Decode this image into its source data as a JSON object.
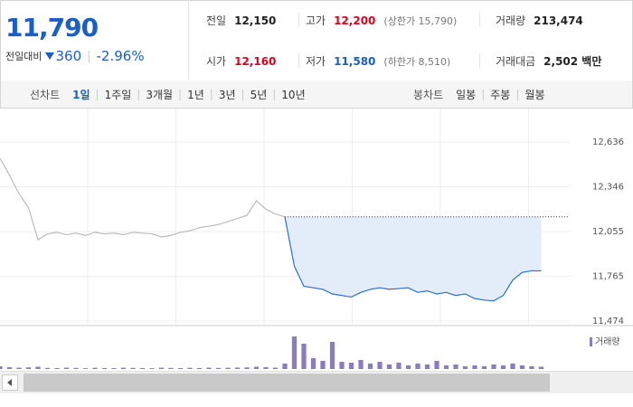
{
  "header": {
    "price": "11,790",
    "change_label": "전일대비",
    "change": "360",
    "change_rate": "-2.96%"
  },
  "stats": [
    {
      "label": "전일",
      "value": "12,150",
      "color": "#222"
    },
    {
      "label": "고가",
      "value": "12,200",
      "note": "(상한가 15,790)",
      "color": "#e0001b"
    },
    {
      "label": "거래량",
      "value": "213,474",
      "color": "#222"
    },
    {
      "label": "시가",
      "value": "12,160",
      "color": "#e0001b"
    },
    {
      "label": "저가",
      "value": "11,580",
      "note": "(하한가 8,510)",
      "color": "#1a5fc7"
    },
    {
      "label": "거래대금",
      "value": "2,502 백만",
      "color": "#222"
    }
  ],
  "tabs": {
    "line_label": "선차트",
    "line": [
      "1일",
      "1주일",
      "3개월",
      "1년",
      "3년",
      "5년",
      "10년"
    ],
    "candle_label": "봉차트",
    "candle": [
      "일봉",
      "주봉",
      "월봉"
    ]
  },
  "chart_data": {
    "type": "line",
    "xlim": [
      0,
      60
    ],
    "ylim": [
      11474,
      12636
    ],
    "yticks": [
      {
        "value": 12636,
        "label": "12,636"
      },
      {
        "value": 12346,
        "label": "12,346"
      },
      {
        "value": 12055,
        "label": "12,055"
      },
      {
        "value": 11765,
        "label": "11,765"
      },
      {
        "value": 11474,
        "label": "11,474"
      }
    ],
    "baseline": 12150,
    "series": [
      {
        "color": "#bbbbbb",
        "values": [
          12530,
          12420,
          12300,
          12210,
          12002,
          12040,
          12050,
          12035,
          12045,
          12030,
          12050,
          12040,
          12045,
          12035,
          12050,
          12045,
          12040,
          12020,
          12030,
          12050,
          12060,
          12080,
          12090,
          12100,
          12120,
          12140,
          12160,
          12255,
          12200,
          12170,
          12150,
          null,
          null,
          null,
          null,
          null,
          null,
          null,
          null,
          null,
          null,
          null,
          null,
          null,
          null,
          null,
          null,
          null,
          null,
          null,
          null,
          null,
          null,
          null,
          null,
          null,
          null,
          null
        ]
      },
      {
        "color": "#2a6fd0",
        "fill": "#e3ecf9",
        "values": [
          null,
          null,
          null,
          null,
          null,
          null,
          null,
          null,
          null,
          null,
          null,
          null,
          null,
          null,
          null,
          null,
          null,
          null,
          null,
          null,
          null,
          null,
          null,
          null,
          null,
          null,
          null,
          null,
          null,
          null,
          12150,
          11830,
          11700,
          11690,
          11680,
          11650,
          11640,
          11630,
          11660,
          11680,
          11690,
          11680,
          11685,
          11690,
          11660,
          11670,
          11650,
          11660,
          11640,
          11650,
          11620,
          11610,
          11605,
          11640,
          11740,
          11790,
          11800,
          11800
        ]
      }
    ],
    "volume": {
      "name": "거래량",
      "color": "#8a7cc0",
      "ylim": [
        0,
        40000
      ],
      "values": [
        3000,
        2000,
        1500,
        1800,
        2500,
        1200,
        1000,
        1500,
        1200,
        900,
        1300,
        1100,
        1000,
        1400,
        1200,
        1000,
        900,
        1500,
        1200,
        1000,
        1300,
        1100,
        1500,
        1200,
        1400,
        1600,
        1800,
        2500,
        2000,
        1500,
        6000,
        36000,
        28000,
        12000,
        9000,
        30000,
        8000,
        7000,
        10000,
        6000,
        8000,
        5000,
        7000,
        4000,
        6000,
        5000,
        9000,
        4000,
        5000,
        3000,
        4000,
        3000,
        5000,
        4000,
        6000,
        4000,
        3000,
        2500
      ]
    }
  }
}
